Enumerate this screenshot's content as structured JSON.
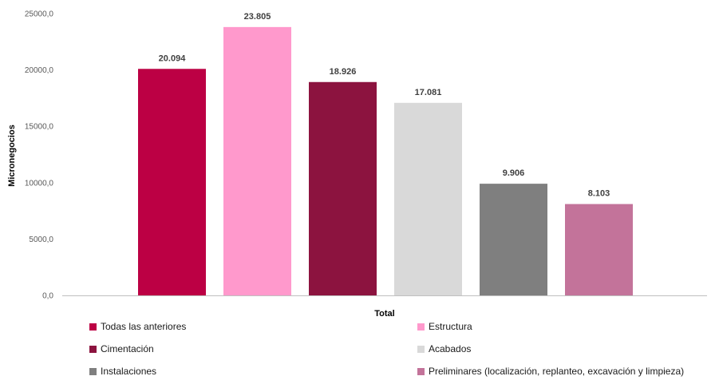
{
  "chart_data": {
    "type": "bar",
    "title": "",
    "xlabel": "Total",
    "ylabel": "Micronegocios",
    "ylim": [
      0,
      25000
    ],
    "yticks": [
      "0,0",
      "5000,0",
      "10000,0",
      "15000,0",
      "20000,0",
      "25000,0"
    ],
    "ytick_values": [
      0,
      5000,
      10000,
      15000,
      20000,
      25000
    ],
    "grid": false,
    "legend_position": "bottom",
    "categories": [
      "Total"
    ],
    "series": [
      {
        "name": "Todas las anteriores",
        "values": [
          20094
        ],
        "label": "20.094",
        "color": "#bc0044"
      },
      {
        "name": "Estructura",
        "values": [
          23805
        ],
        "label": "23.805",
        "color": "#ff99cc"
      },
      {
        "name": "Cimentación",
        "values": [
          18926
        ],
        "label": "18.926",
        "color": "#8c133f"
      },
      {
        "name": "Acabados",
        "values": [
          17081
        ],
        "label": "17.081",
        "color": "#d9d9d9"
      },
      {
        "name": "Instalaciones",
        "values": [
          9906
        ],
        "label": "9.906",
        "color": "#7f7f7f"
      },
      {
        "name": "Preliminares (localización, replanteo, excavación y limpieza)",
        "values": [
          8103
        ],
        "label": "8.103",
        "color": "#c3739a"
      }
    ]
  }
}
